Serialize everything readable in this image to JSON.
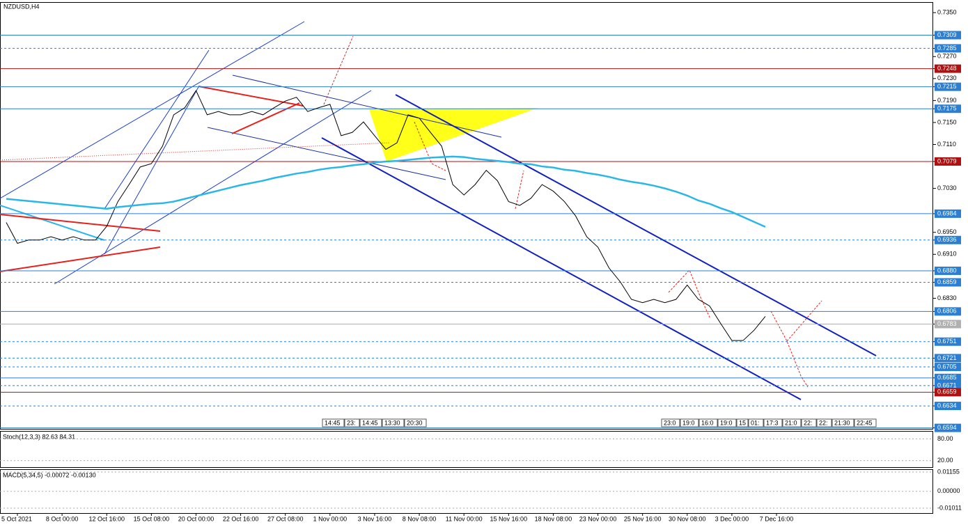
{
  "chart_data": {
    "type": "line",
    "title": "NZDUSD,H4",
    "categories": [
      null,
      "5 Oct 2021",
      null,
      null,
      null,
      "8 Oct 00:00",
      null,
      null,
      null,
      "12 Oct 16:00",
      null,
      null,
      null,
      "15 Oct 08:00",
      null,
      null,
      null,
      "20 Oct 00:00",
      null,
      null,
      null,
      "22 Oct 16:00",
      null,
      null,
      null,
      "27 Oct 08:00",
      null,
      null,
      null,
      "1 Nov 00:00",
      null,
      null,
      null,
      "3 Nov 16:00",
      null,
      null,
      null,
      "8 Nov 08:00",
      null,
      null,
      null,
      "11 Nov 00:00",
      null,
      null,
      null,
      "15 Nov 16:00",
      null,
      null,
      null,
      "18 Nov 08:00",
      null,
      null,
      null,
      "23 Nov 00:00",
      null,
      null,
      null,
      "25 Nov 16:00",
      null,
      null,
      null,
      "30 Nov 08:00",
      null,
      null,
      null,
      "3 Dec 00:00",
      null,
      null,
      null,
      "7 Dec 16:00"
    ],
    "series": [
      {
        "color": "#000000",
        "values": [
          0.6968,
          0.693,
          0.6936,
          0.6936,
          0.6942,
          0.6936,
          0.6942,
          0.6936,
          0.6936,
          0.6961,
          0.7006,
          0.7037,
          0.7069,
          0.7075,
          0.7107,
          0.7164,
          0.7177,
          0.7208,
          0.7164,
          0.717,
          0.7164,
          0.7164,
          0.717,
          0.7164,
          0.7177,
          0.7189,
          0.7196,
          0.717,
          0.7177,
          0.7183,
          0.7126,
          0.7132,
          0.7151,
          0.7126,
          0.7101,
          0.7113,
          0.7164,
          0.7158,
          0.7132,
          0.7107,
          0.7037,
          0.7018,
          0.7037,
          0.7063,
          0.7044,
          0.7006,
          0.6999,
          0.7012,
          0.7037,
          0.7025,
          0.7006,
          0.698,
          0.6942,
          0.6923,
          0.6885,
          0.686,
          0.6828,
          0.6822,
          0.6828,
          0.6822,
          0.6828,
          0.6854,
          0.6828,
          0.6816,
          0.6784,
          0.6753,
          0.6753,
          0.6772,
          0.6797,
          null
        ]
      },
      {
        "color": "#29b6e8",
        "values": [
          0.7011,
          0.7009,
          0.7007,
          0.7005,
          0.7003,
          0.7001,
          0.6999,
          0.6997,
          0.6995,
          0.6993,
          0.6996,
          0.6998,
          0.7,
          0.7002,
          0.7003,
          0.7006,
          0.7011,
          0.7016,
          0.7021,
          0.7026,
          0.7031,
          0.7036,
          0.704,
          0.7044,
          0.7049,
          0.7053,
          0.7057,
          0.706,
          0.7064,
          0.7067,
          0.7069,
          0.7072,
          0.7074,
          0.7077,
          0.7079,
          0.708,
          0.7082,
          0.7084,
          0.7086,
          0.7087,
          0.7088,
          0.7087,
          0.7084,
          0.7082,
          0.708,
          0.7078,
          0.7075,
          0.7074,
          0.707,
          0.7068,
          0.7064,
          0.7062,
          0.7058,
          0.7055,
          0.7051,
          0.7046,
          0.7042,
          0.7039,
          0.7035,
          0.703,
          0.7024,
          0.7017,
          0.7008,
          0.7002,
          0.6994,
          0.6987,
          0.6978,
          0.6969,
          0.696,
          null
        ]
      }
    ],
    "ylim": [
      0.6591,
      0.7373
    ],
    "yticks": [
      {
        "value": 0.735,
        "label": "0.7350"
      },
      {
        "value": 0.7309,
        "label": "0.7309",
        "line": "solid"
      },
      {
        "value": 0.7285,
        "label": "0.7285",
        "line": "dashed"
      },
      {
        "value": 0.727,
        "label": "0.7270"
      },
      {
        "value": 0.7248,
        "label": "0.7248",
        "line": "red"
      },
      {
        "value": 0.723,
        "label": "0.7230"
      },
      {
        "value": 0.7215,
        "label": "0.7215",
        "line": "solid"
      },
      {
        "value": 0.719,
        "label": "0.7190"
      },
      {
        "value": 0.7175,
        "label": "0.7175",
        "line": "solid"
      },
      {
        "value": 0.715,
        "label": "0.7150"
      },
      {
        "value": 0.711,
        "label": "0.7110"
      },
      {
        "value": 0.7079,
        "label": "0.7079",
        "line": "red"
      },
      {
        "value": 0.703,
        "label": "0.7030"
      },
      {
        "value": 0.6984,
        "label": "0.6984",
        "line": "solid"
      },
      {
        "value": 0.695,
        "label": "0.6950"
      },
      {
        "value": 0.6936,
        "label": "0.6936",
        "line": "dashed"
      },
      {
        "value": 0.691,
        "label": "0.6910"
      },
      {
        "value": 0.688,
        "label": "0.6880",
        "line": "solid"
      },
      {
        "value": 0.6859,
        "label": "0.6859",
        "line": "dashed"
      },
      {
        "value": 0.683,
        "label": "0.6830"
      },
      {
        "value": 0.6806,
        "label": "0.6806",
        "line": "solid"
      },
      {
        "value": 0.6783,
        "label": "0.6783",
        "line": "price"
      },
      {
        "value": 0.6751,
        "label": "0.6751",
        "line": "dashed"
      },
      {
        "value": 0.6721,
        "label": "0.6721",
        "line": "dashed"
      },
      {
        "value": 0.6705,
        "label": "0.6705",
        "line": "dashed"
      },
      {
        "value": 0.6685,
        "label": "0.6685",
        "line": "solid"
      },
      {
        "value": 0.6671,
        "label": "0.6671",
        "line": "dashed"
      },
      {
        "value": 0.6659,
        "label": "0.6659",
        "line": "red"
      },
      {
        "value": 0.6634,
        "label": "0.6634",
        "line": "dashed"
      },
      {
        "value": 0.6594,
        "label": "0.6594",
        "line": "solid"
      }
    ],
    "time_tags_left": [
      "14:45",
      "23:",
      "14:45",
      "13:30",
      "20:30"
    ],
    "time_tags_right": [
      "23:0",
      "19:0",
      "16:0",
      "19:0",
      "15",
      "01:",
      "17:3",
      "21:0",
      "22:",
      "22:",
      "21:30",
      "22:45"
    ],
    "stoch": {
      "label": "Stoch(12,3,3) 82.63 84.31",
      "ylim": [
        0,
        100
      ],
      "yticks": [
        {
          "value": 80,
          "label": "80.00"
        },
        {
          "value": 20,
          "label": "20.00"
        }
      ]
    },
    "macd": {
      "label": "MACD(5,34,5) -0.00072 -0.00130",
      "ylim": [
        -0.013,
        0.0128
      ],
      "yticks": [
        {
          "value": 0.01155,
          "label": "0.01155"
        },
        {
          "value": 0,
          "label": "0.00000"
        },
        {
          "value": -0.01011,
          "label": "-0.01011"
        }
      ]
    }
  }
}
